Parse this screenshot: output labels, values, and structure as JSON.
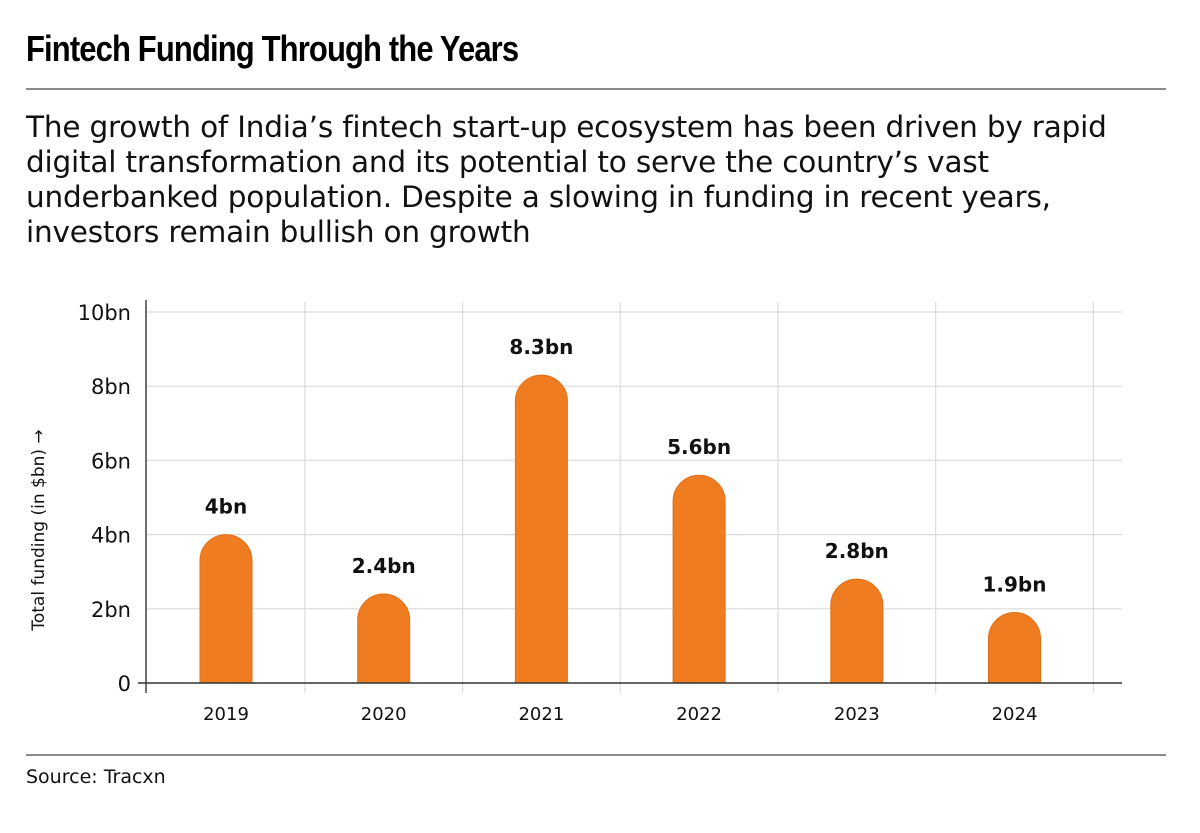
{
  "header": {
    "title": "Fintech Funding Through the Years",
    "subtitle": "The growth of India’s fintech start-up ecosystem has been driven by rapid digital transformation and its potential to serve the country’s vast underbanked population. Despite a slowing in funding in recent years, investors remain bullish on growth"
  },
  "footer": {
    "source": "Source: Tracxn"
  },
  "colors": {
    "bar": "#F07C22",
    "grid": "#dcdcdc",
    "axis": "#333333"
  },
  "chart_data": {
    "type": "bar",
    "title": "Fintech Funding Through the Years",
    "xlabel": "",
    "ylabel": "Total funding (in $bn) →",
    "categories": [
      "2019",
      "2020",
      "2021",
      "2022",
      "2023",
      "2024"
    ],
    "values": [
      4,
      2.4,
      8.3,
      5.6,
      2.8,
      1.9
    ],
    "data_labels": [
      "4bn",
      "2.4bn",
      "8.3bn",
      "5.6bn",
      "2.8bn",
      "1.9bn"
    ],
    "ylim": [
      0,
      10
    ],
    "yticks": [
      0,
      2,
      4,
      6,
      8,
      10
    ],
    "ytick_labels": [
      "0",
      "2bn",
      "4bn",
      "6bn",
      "8bn",
      "10bn"
    ],
    "grid": true,
    "bar_style": "rounded-top",
    "legend": "none"
  }
}
